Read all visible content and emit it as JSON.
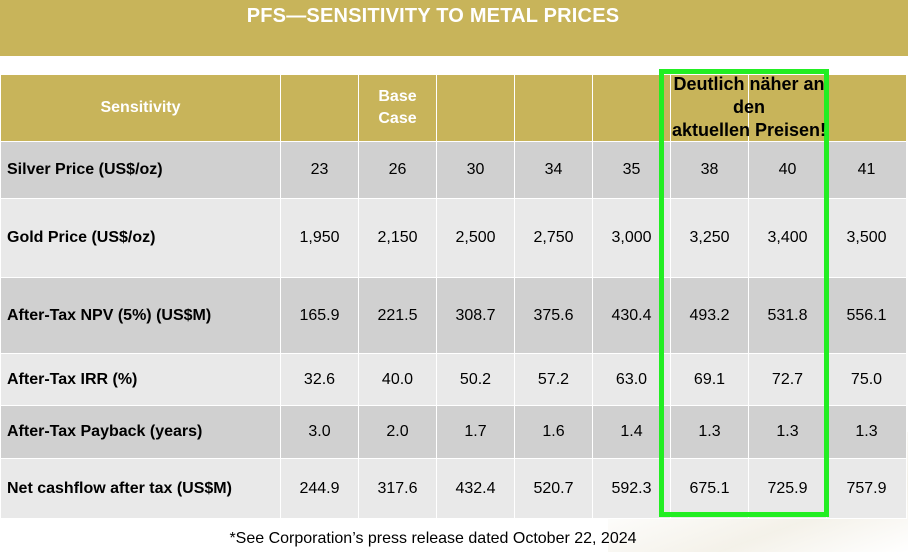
{
  "title": "PFS—SENSITIVITY TO METAL PRICES",
  "table": {
    "header": {
      "label": "Sensitivity",
      "columns": [
        "",
        "Base Case",
        "",
        "",
        "",
        "",
        "",
        ""
      ]
    },
    "rows": [
      {
        "label": "Silver Price (US$/oz)",
        "values": [
          "23",
          "26",
          "30",
          "34",
          "35",
          "38",
          "40",
          "41"
        ]
      },
      {
        "label": "Gold Price (US$/oz)",
        "values": [
          "1,950",
          "2,150",
          "2,500",
          "2,750",
          "3,000",
          "3,250",
          "3,400",
          "3,500"
        ]
      },
      {
        "label": "After-Tax NPV (5%) (US$M)",
        "values": [
          "165.9",
          "221.5",
          "308.7",
          "375.6",
          "430.4",
          "493.2",
          "531.8",
          "556.1"
        ]
      },
      {
        "label": "After-Tax IRR (%)",
        "values": [
          "32.6",
          "40.0",
          "50.2",
          "57.2",
          "63.0",
          "69.1",
          "72.7",
          "75.0"
        ]
      },
      {
        "label": "After-Tax Payback (years)",
        "values": [
          "3.0",
          "2.0",
          "1.7",
          "1.6",
          "1.4",
          "1.3",
          "1.3",
          "1.3"
        ]
      },
      {
        "label": "Net cashflow after tax (US$M)",
        "values": [
          "244.9",
          "317.6",
          "432.4",
          "520.7",
          "592.3",
          "675.1",
          "725.9",
          "757.9"
        ]
      }
    ]
  },
  "annotation": {
    "line1": "Deutlich näher an",
    "line2": "den",
    "line3": "aktuellen Preisen!"
  },
  "footnote": "*See Corporation’s press release dated October 22, 2024",
  "colors": {
    "header_gold": "#c8b45a",
    "row_dark": "#d0d0d0",
    "row_light": "#e9e9e9",
    "highlight_green": "#22ee22"
  }
}
